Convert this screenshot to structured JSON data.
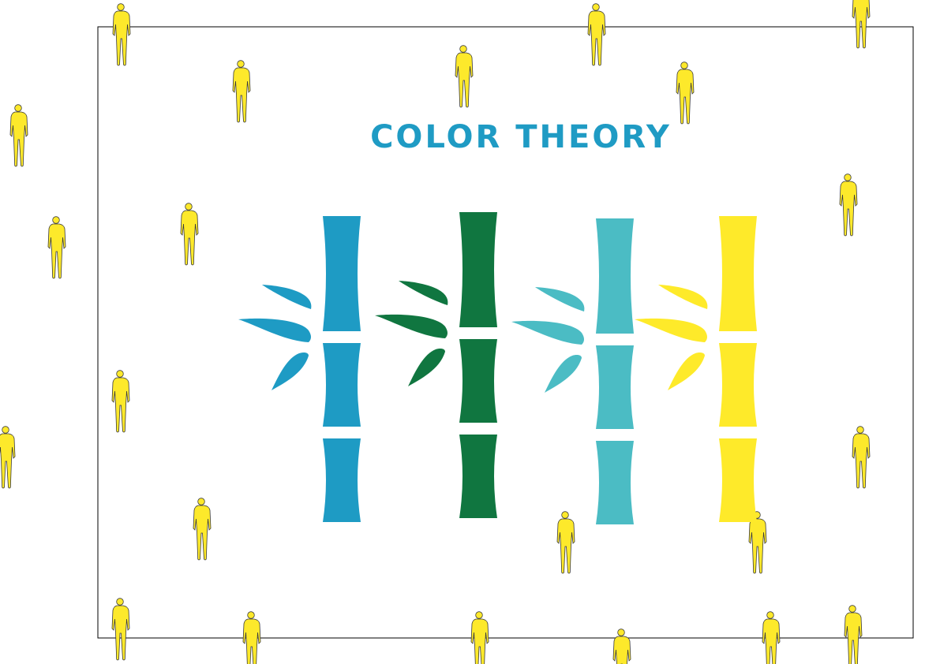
{
  "title": "COLOR THEORY",
  "colors": {
    "title": "#1f9bc4",
    "frame": "#000000",
    "figure_fill": "#fde92b",
    "figure_stroke": "#3a3a3a"
  },
  "bamboo": [
    {
      "name": "blue",
      "color": "#1e9bc4"
    },
    {
      "name": "green",
      "color": "#107640"
    },
    {
      "name": "teal",
      "color": "#4bbcc4"
    },
    {
      "name": "yellow",
      "color": "#feea2a"
    }
  ],
  "figure_icon": "person-icon"
}
